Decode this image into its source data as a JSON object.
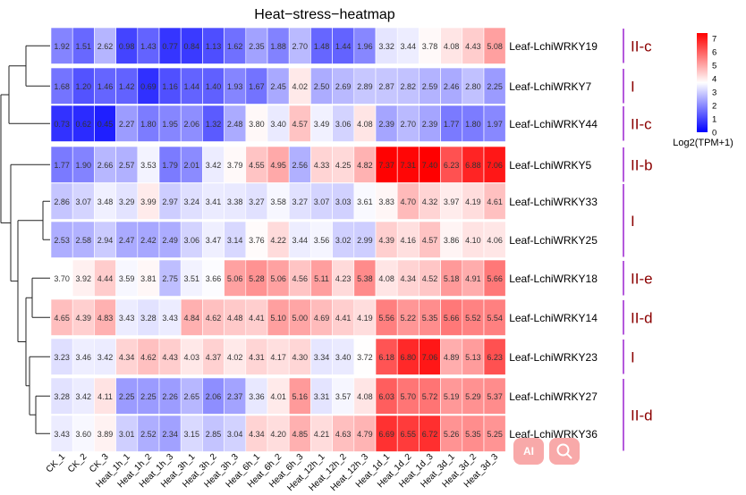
{
  "chart_data": {
    "type": "heatmap",
    "title": "Heat−stress−heatmap",
    "columns": [
      "CK_1",
      "CK_2",
      "CK_3",
      "Heat_1h_1",
      "Heat_1h_2",
      "Heat_1h_3",
      "Heat_3h_1",
      "Heat_3h_2",
      "Heat_3h_3",
      "Heat_6h_1",
      "Heat_6h_2",
      "Heat_6h_3",
      "Heat_12h_1",
      "Heat_12h_2",
      "Heat_12h_3",
      "Heat_1d_1",
      "Heat_1d_2",
      "Heat_1d_3",
      "Heat_3d_1",
      "Heat_3d_2",
      "Heat_3d_3"
    ],
    "rows": [
      "Leaf-LchiWRKY19",
      "Leaf-LchiWRKY7",
      "Leaf-LchiWRKY44",
      "Leaf-LchiWRKY5",
      "Leaf-LchiWRKY33",
      "Leaf-LchiWRKY25",
      "Leaf-LchiWRKY18",
      "Leaf-LchiWRKY14",
      "Leaf-LchiWRKY23",
      "Leaf-LchiWRKY27",
      "Leaf-LchiWRKY36"
    ],
    "values": [
      [
        1.92,
        1.51,
        2.62,
        0.98,
        1.43,
        0.77,
        0.84,
        1.13,
        1.62,
        2.35,
        1.88,
        2.7,
        1.48,
        1.44,
        1.96,
        3.32,
        3.44,
        3.78,
        4.08,
        4.43,
        5.08
      ],
      [
        1.68,
        1.2,
        1.46,
        1.42,
        0.69,
        1.16,
        1.44,
        1.4,
        1.93,
        1.67,
        2.45,
        4.02,
        2.5,
        2.69,
        2.89,
        2.87,
        2.82,
        2.59,
        2.46,
        2.8,
        2.25
      ],
      [
        0.73,
        0.62,
        0.45,
        2.27,
        1.8,
        1.95,
        2.06,
        1.32,
        2.48,
        3.8,
        3.4,
        4.57,
        3.49,
        3.06,
        4.08,
        2.39,
        2.7,
        2.39,
        1.77,
        1.8,
        1.97
      ],
      [
        1.77,
        1.9,
        2.66,
        2.57,
        3.53,
        1.79,
        2.01,
        3.42,
        3.79,
        4.55,
        4.95,
        2.56,
        4.33,
        4.25,
        4.82,
        7.37,
        7.31,
        7.4,
        6.23,
        6.88,
        7.06
      ],
      [
        2.86,
        3.07,
        3.48,
        3.29,
        3.99,
        2.97,
        3.24,
        3.41,
        3.38,
        3.27,
        3.58,
        3.27,
        3.07,
        3.03,
        3.61,
        3.83,
        4.7,
        4.32,
        3.97,
        4.19,
        4.61
      ],
      [
        2.53,
        2.58,
        2.94,
        2.47,
        2.42,
        2.49,
        3.06,
        3.47,
        3.14,
        3.76,
        4.22,
        3.44,
        3.56,
        3.02,
        2.99,
        4.39,
        4.16,
        4.57,
        3.86,
        4.1,
        4.06
      ],
      [
        3.7,
        3.92,
        4.44,
        3.59,
        3.81,
        2.75,
        3.51,
        3.66,
        5.06,
        5.28,
        5.06,
        4.56,
        5.11,
        4.23,
        5.38,
        4.08,
        4.34,
        4.52,
        5.18,
        4.91,
        5.66
      ],
      [
        4.65,
        4.39,
        4.83,
        3.43,
        3.28,
        3.43,
        4.84,
        4.62,
        4.48,
        4.41,
        5.1,
        5.0,
        4.69,
        4.41,
        4.19,
        5.56,
        5.22,
        5.35,
        5.66,
        5.52,
        5.54
      ],
      [
        3.23,
        3.46,
        3.42,
        4.34,
        4.62,
        4.43,
        4.03,
        4.37,
        4.02,
        4.31,
        4.17,
        4.3,
        3.34,
        3.4,
        3.72,
        6.18,
        6.8,
        7.06,
        4.89,
        5.13,
        6.23
      ],
      [
        3.28,
        3.42,
        4.11,
        2.25,
        2.25,
        2.26,
        2.65,
        2.06,
        2.37,
        3.36,
        4.01,
        5.16,
        3.31,
        3.57,
        4.08,
        6.03,
        5.7,
        5.72,
        5.19,
        5.29,
        5.37
      ],
      [
        3.43,
        3.6,
        3.89,
        3.01,
        2.52,
        2.34,
        3.15,
        2.85,
        3.04,
        4.34,
        4.2,
        4.85,
        4.21,
        4.63,
        4.79,
        6.69,
        6.55,
        6.72,
        5.26,
        5.35,
        5.25
      ]
    ],
    "groups": [
      {
        "label": "II-c",
        "rows": [
          0,
          0
        ]
      },
      {
        "label": "I",
        "rows": [
          1,
          1
        ]
      },
      {
        "label": "II-c",
        "rows": [
          2,
          2
        ]
      },
      {
        "label": "II-b",
        "rows": [
          3,
          3
        ]
      },
      {
        "label": "I",
        "rows": [
          4,
          5
        ]
      },
      {
        "label": "II-e",
        "rows": [
          6,
          6
        ]
      },
      {
        "label": "II-d",
        "rows": [
          7,
          7
        ]
      },
      {
        "label": "I",
        "rows": [
          8,
          8
        ]
      },
      {
        "label": "II-d",
        "rows": [
          9,
          10
        ]
      }
    ],
    "colorbar": {
      "title": "Log2(TPM+1)",
      "range": [
        0,
        7.4
      ],
      "ticks": [
        0,
        1,
        2,
        3,
        4,
        5,
        6,
        7
      ],
      "low_color": "#0000ff",
      "mid_color": "#ffffff",
      "high_color": "#ff0000",
      "midpoint": 3.7
    },
    "group_label_color": "#8b0000",
    "group_bar_color": "#8b00c8",
    "dendrogram": "rows, left side; column gaps after CK_3 and Heat_3h_3 are not split, row gaps after WRKY44, WRKY5, WRKY25, WRKY18, WRKY14, WRKY23"
  },
  "overlay_buttons": [
    "AI",
    "search-icon"
  ]
}
